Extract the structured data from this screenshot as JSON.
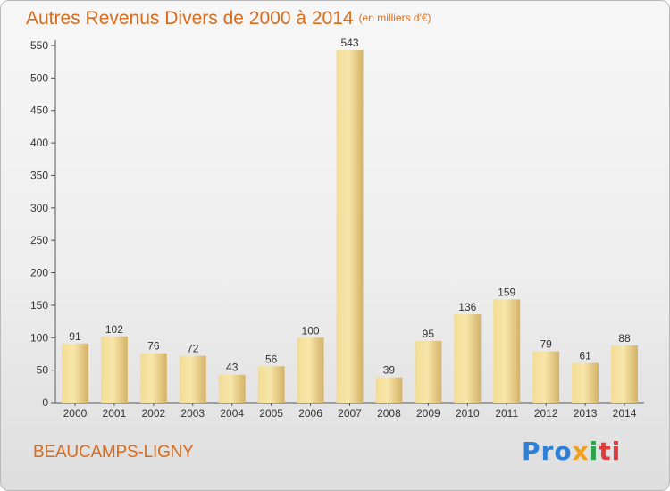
{
  "header": {
    "title": "Autres Revenus Divers de 2000 à 2014",
    "unit": "(en milliers d'€)"
  },
  "footer": {
    "city": "BEAUCAMPS-LIGNY",
    "logo_parts": [
      "Pro",
      "x",
      "i",
      "ti"
    ]
  },
  "colors": {
    "title": "#d96b1c",
    "bar_light": "#f7e3a2",
    "bar_dark": "#d7b76a"
  },
  "chart_data": {
    "type": "bar",
    "title": "Autres Revenus Divers de 2000 à 2014",
    "subtitle": "(en milliers d'€)",
    "xlabel": "",
    "ylabel": "",
    "categories": [
      "2000",
      "2001",
      "2002",
      "2003",
      "2004",
      "2005",
      "2006",
      "2007",
      "2008",
      "2009",
      "2010",
      "2011",
      "2012",
      "2013",
      "2014"
    ],
    "values": [
      91,
      102,
      76,
      72,
      43,
      56,
      100,
      543,
      39,
      95,
      136,
      159,
      79,
      61,
      88
    ],
    "ylim": [
      0,
      550
    ],
    "yticks": [
      0,
      50,
      100,
      150,
      200,
      250,
      300,
      350,
      400,
      450,
      500,
      550
    ],
    "grid": false,
    "legend": "none"
  }
}
